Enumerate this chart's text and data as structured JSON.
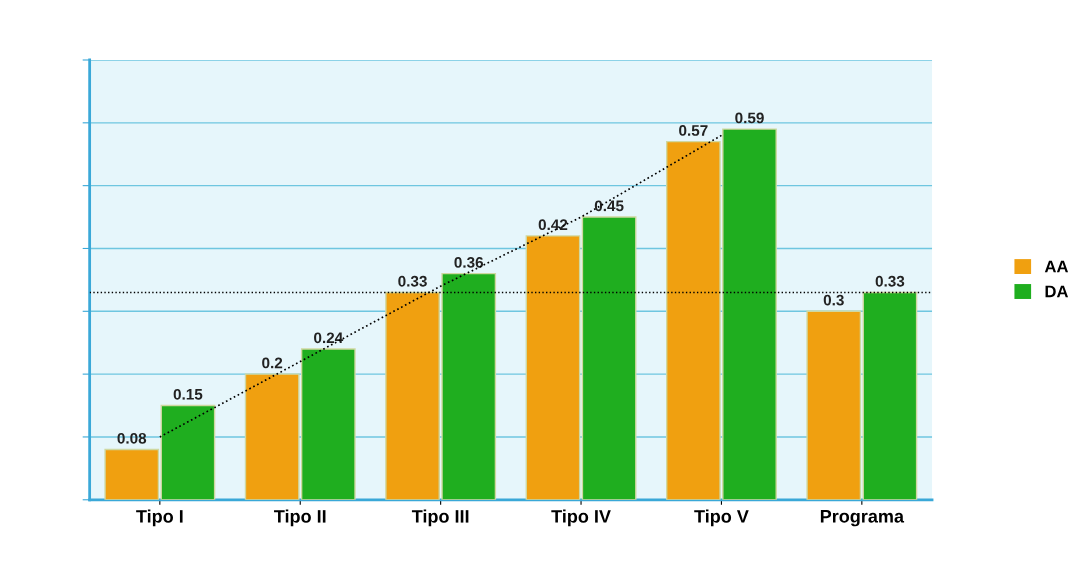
{
  "chart_data": {
    "type": "bar",
    "categories": [
      "Tipo I",
      "Tipo II",
      "Tipo III",
      "Tipo IV",
      "Tipo V",
      "Programa"
    ],
    "series": [
      {
        "name": "AA",
        "color": "#f0a010",
        "values": [
          0.08,
          0.2,
          0.33,
          0.42,
          0.57,
          0.3
        ],
        "value_labels": [
          "0.08",
          "0.2",
          "0.33",
          "0.42",
          "0.57",
          "0.3"
        ]
      },
      {
        "name": "DA",
        "color": "#1fae1f",
        "values": [
          0.15,
          0.24,
          0.36,
          0.45,
          0.59,
          0.33
        ],
        "value_labels": [
          "0.15",
          "0.24",
          "0.36",
          "0.45",
          "0.59",
          "0.33"
        ]
      },
      {
        "type": "line",
        "color": "#000000",
        "line_style": "dotted",
        "values": [
          0.1,
          0.22,
          0.34,
          0.45,
          0.58,
          null
        ]
      }
    ],
    "ref_lines": [
      {
        "axis": "y",
        "value": 0.33,
        "color": "#000000",
        "line_style": "dotted"
      }
    ],
    "ylim": [
      0,
      0.7
    ],
    "yticks": [
      {
        "value": 0,
        "label": null
      },
      {
        "value": 0.1,
        "label": null
      },
      {
        "value": 0.2,
        "label": null
      },
      {
        "value": 0.3,
        "label": null
      },
      {
        "value": 0.4,
        "label": null
      },
      {
        "value": 0.5,
        "label": null
      },
      {
        "value": 0.6,
        "label": null
      },
      {
        "value": 0.7,
        "label": null
      }
    ],
    "tick_labels": "x",
    "grid": "y",
    "legend": "right"
  }
}
